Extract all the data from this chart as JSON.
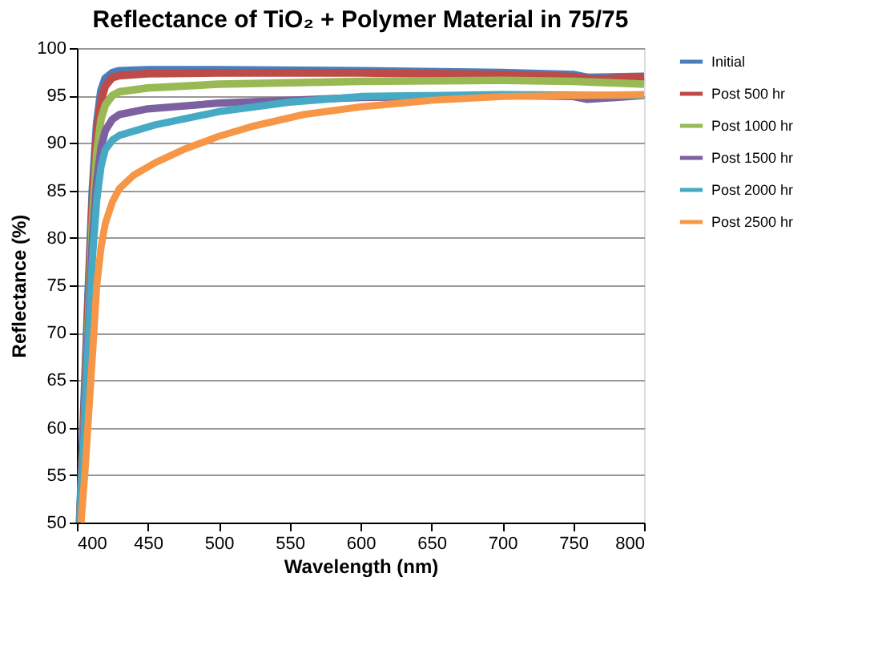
{
  "chart_data": {
    "type": "line",
    "title": "Reflectance of TiO₂ + Polymer Material in 75/75",
    "xlabel": "Wavelength (nm)",
    "ylabel": "Reflectance (%)",
    "xlim": [
      400,
      800
    ],
    "xticks": [
      400,
      450,
      500,
      550,
      600,
      650,
      700,
      750,
      800
    ],
    "ylim": [
      50,
      100
    ],
    "yticks": [
      50,
      55,
      60,
      65,
      70,
      75,
      80,
      85,
      90,
      95,
      100
    ],
    "grid": "y",
    "legend": "right",
    "marker": "none",
    "line_style": "solid",
    "series": [
      {
        "name": "Initial",
        "color": "#4a7ebb",
        "x": [
          402,
          405,
          408,
          411,
          414,
          417,
          420,
          425,
          430,
          450,
          500,
          600,
          700,
          750,
          760,
          800
        ],
        "values": [
          50,
          62,
          74,
          85,
          92,
          95.5,
          96.8,
          97.4,
          97.6,
          97.7,
          97.7,
          97.6,
          97.4,
          97.2,
          96.9,
          97
        ]
      },
      {
        "name": "Post 500 hr",
        "color": "#be4b48",
        "x": [
          402,
          405,
          408,
          411,
          414,
          417,
          420,
          425,
          430,
          450,
          500,
          600,
          700,
          750,
          765,
          800
        ],
        "values": [
          50,
          61,
          73,
          84,
          91,
          94.5,
          96,
          96.9,
          97.1,
          97.3,
          97.4,
          97.4,
          97.2,
          97,
          96.7,
          97
        ]
      },
      {
        "name": "Post 1000 hr",
        "color": "#98b954",
        "x": [
          402,
          405,
          408,
          411,
          414,
          417,
          420,
          425,
          430,
          450,
          500,
          600,
          700,
          750,
          800
        ],
        "values": [
          50,
          60,
          71,
          82,
          89,
          92.5,
          94,
          95,
          95.4,
          95.8,
          96.2,
          96.5,
          96.6,
          96.5,
          96.2
        ]
      },
      {
        "name": "Post 1500 hr",
        "color": "#7d60a0",
        "x": [
          402,
          405,
          408,
          411,
          414,
          417,
          420,
          425,
          430,
          450,
          500,
          550,
          600,
          700,
          750,
          760,
          800
        ],
        "values": [
          50,
          60,
          70,
          80,
          86,
          89.5,
          91.3,
          92.5,
          93,
          93.6,
          94.2,
          94.5,
          94.8,
          95,
          94.9,
          94.6,
          95
        ]
      },
      {
        "name": "Post 2000 hr",
        "color": "#46aac5",
        "x": [
          402,
          405,
          408,
          411,
          414,
          417,
          420,
          425,
          430,
          455,
          500,
          550,
          600,
          650,
          700,
          800
        ],
        "values": [
          50,
          59,
          69,
          78,
          84,
          87.5,
          89.3,
          90.3,
          90.8,
          91.9,
          93.3,
          94.3,
          94.9,
          95,
          95.1,
          95
        ]
      },
      {
        "name": "Post 2500 hr",
        "color": "#f79646",
        "x": [
          403,
          406,
          409,
          412,
          414,
          417,
          420,
          425,
          430,
          440,
          455,
          475,
          500,
          525,
          560,
          600,
          650,
          700,
          800
        ],
        "values": [
          50,
          56,
          63,
          70,
          75,
          79,
          81.5,
          83.8,
          85.2,
          86.6,
          87.9,
          89.3,
          90.7,
          91.8,
          93,
          93.8,
          94.5,
          94.9,
          95.1
        ]
      }
    ]
  }
}
